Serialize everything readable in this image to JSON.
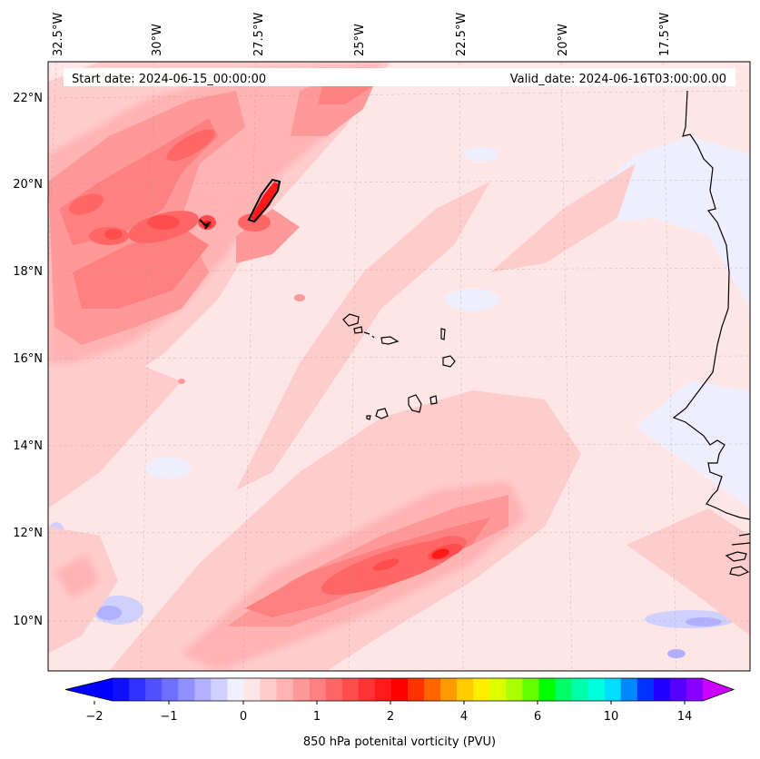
{
  "map": {
    "start_date_label": "Start date: 2024-06-15_00:00:00",
    "valid_date_label": "Valid_date: 2024-06-16T03:00:00.00",
    "longitude_ticks": [
      "32.5°W",
      "30°W",
      "27.5°W",
      "25°W",
      "22.5°W",
      "20°W",
      "17.5°W"
    ],
    "latitude_ticks": [
      "22°N",
      "20°N",
      "18°N",
      "16°N",
      "14°N",
      "12°N",
      "10°N"
    ],
    "variable": "850 hPa potential vorticity",
    "units": "PVU"
  },
  "colorbar": {
    "label": "850 hPa potenital vorticity (PVU)",
    "tick_labels": [
      "−2",
      "−1",
      "0",
      "1",
      "2",
      "4",
      "6",
      "10",
      "14"
    ],
    "colors": [
      "#1010ff",
      "#3030ff",
      "#5050ff",
      "#7070ff",
      "#9090ff",
      "#b0b0ff",
      "#d0d0ff",
      "#f0f0ff",
      "#ffe6e6",
      "#ffcccc",
      "#ffb3b3",
      "#ff9999",
      "#ff8080",
      "#ff6666",
      "#ff4d4d",
      "#ff3333",
      "#ff1a1a",
      "#ff0000",
      "#ff3300",
      "#ff6600",
      "#ff9900",
      "#ffcc00",
      "#ffee00",
      "#ddff00",
      "#aaff00",
      "#66ff00",
      "#00ff00",
      "#00ff66",
      "#00ffaa",
      "#00ffdd",
      "#00ddff",
      "#0088ff",
      "#0033ff",
      "#2200ff",
      "#5500ff",
      "#8800ff"
    ],
    "under_color": "#0000ff",
    "over_color": "#cc00ff"
  }
}
